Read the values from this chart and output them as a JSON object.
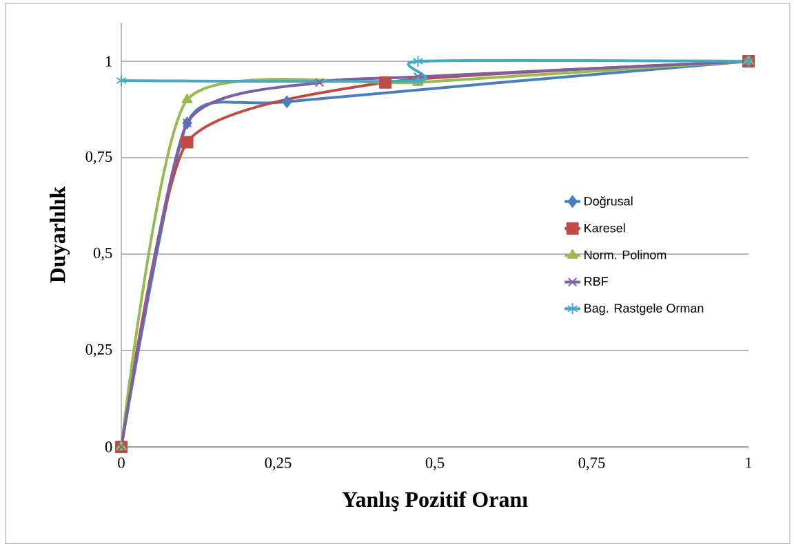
{
  "chart_data": {
    "type": "line",
    "xlabel": "Yanlış Pozitif Oranı",
    "ylabel": "Duyarlılık",
    "xlim": [
      0,
      1
    ],
    "ylim": [
      0,
      1.1
    ],
    "xticks": [
      0,
      {
        "value": 0.25,
        "label": "0,25"
      },
      {
        "value": 0.5,
        "label": "0,5"
      },
      {
        "value": 0.75,
        "label": "0,75"
      },
      1
    ],
    "yticks": [
      0,
      {
        "value": 0.25,
        "label": "0,25"
      },
      {
        "value": 0.5,
        "label": "0,5"
      },
      {
        "value": 0.75,
        "label": "0,75"
      },
      1
    ],
    "grid": "y",
    "legend": "right",
    "series": [
      {
        "name": "Doğrusal",
        "color": "#4a7ebb",
        "marker": "diamond",
        "x": [
          0,
          0.105,
          0.264,
          1
        ],
        "values": [
          0,
          0.84,
          0.895,
          1
        ]
      },
      {
        "name": "Karesel",
        "color": "#be4b48",
        "marker": "square",
        "x": [
          0,
          0.105,
          0.421,
          1
        ],
        "values": [
          0,
          0.79,
          0.945,
          1
        ]
      },
      {
        "name": "Norm. Polinom",
        "color": "#98b954",
        "marker": "triangle",
        "x": [
          0,
          0.105,
          0.473,
          1
        ],
        "values": [
          0,
          0.9,
          0.945,
          1
        ]
      },
      {
        "name": "RBF",
        "color": "#7d60a0",
        "marker": "cross",
        "x": [
          0,
          0.105,
          0.316,
          0.473,
          1
        ],
        "values": [
          0,
          0.84,
          0.945,
          0.96,
          1
        ]
      },
      {
        "name": "Bag. Rastgele Orman",
        "color": "#46aac5",
        "marker": "cross",
        "x": [
          0,
          0.473,
          0.473,
          1
        ],
        "values": [
          0.95,
          0.95,
          1,
          1
        ]
      }
    ]
  }
}
